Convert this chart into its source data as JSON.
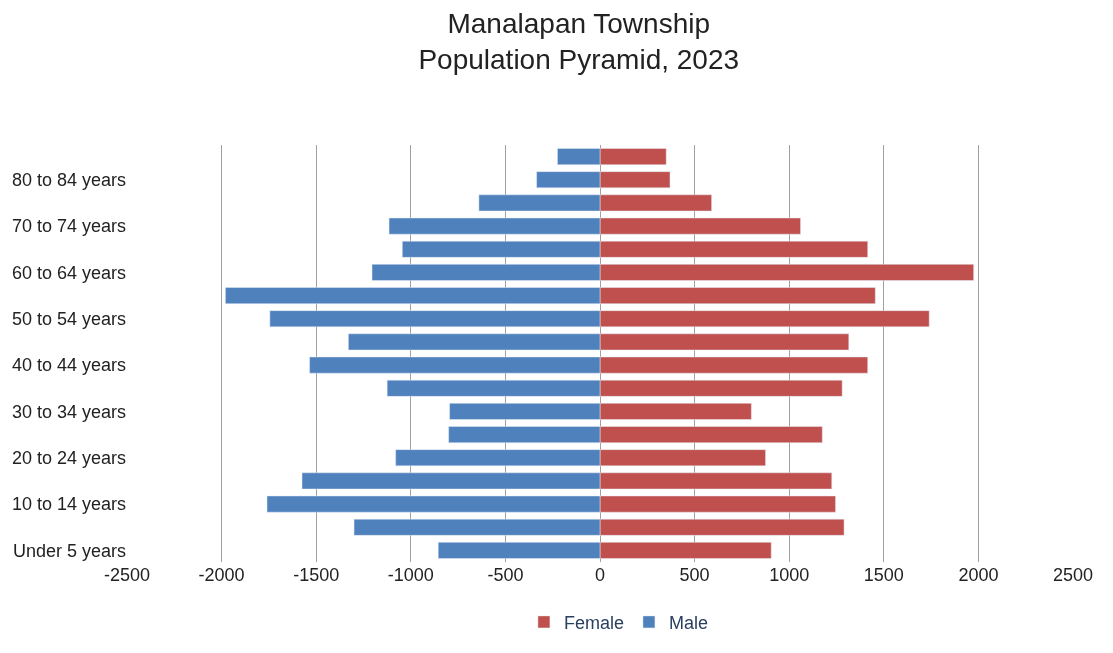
{
  "chart_data": {
    "type": "bar",
    "orientation": "horizontal",
    "stacked": true,
    "title": "Manalapan Township\nPopulation Pyramid, 2023",
    "categories": [
      null,
      "80 to 84 years",
      null,
      "70 to 74 years",
      null,
      "60 to 64 years",
      null,
      "50 to 54 years",
      null,
      "40 to 44 years",
      null,
      "30 to 34 years",
      null,
      "20 to 24 years",
      null,
      "10 to 14 years",
      null,
      "Under 5 years"
    ],
    "series": [
      {
        "name": "Female",
        "color": "#c0504d",
        "values": [
          350,
          370,
          590,
          1060,
          1415,
          1975,
          1455,
          1740,
          1315,
          1415,
          1280,
          800,
          1175,
          875,
          1225,
          1245,
          1290,
          905
        ]
      },
      {
        "name": "Male",
        "color": "#4f81bd",
        "values": [
          -225,
          -335,
          -640,
          -1115,
          -1045,
          -1205,
          -1980,
          -1745,
          -1330,
          -1535,
          -1125,
          -795,
          -800,
          -1080,
          -1575,
          -1760,
          -1300,
          -855
        ]
      }
    ],
    "xlim": [
      -2500,
      2500
    ],
    "xticks": [
      -2500,
      -2000,
      -1500,
      -1000,
      -500,
      0,
      500,
      1000,
      1500,
      2000,
      2500
    ],
    "grid": "x",
    "legend": "bottom"
  }
}
